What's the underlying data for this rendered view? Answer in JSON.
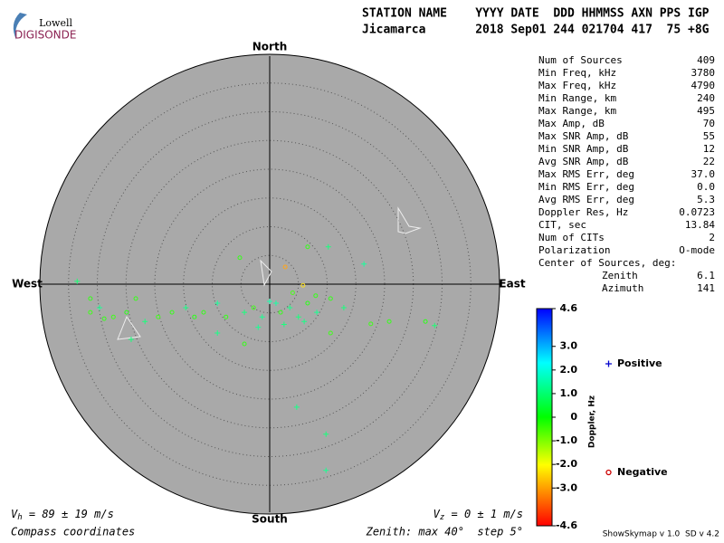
{
  "logo": {
    "top": "Lowell",
    "bottom": "DIGISONDE"
  },
  "header": {
    "line1": "STATION NAME    YYYY DATE  DDD HHMMSS AXN PPS IGP",
    "line2": "Jicamarca       2018 Sep01 244 021704 417  75 +8G"
  },
  "stats": {
    "rows": [
      [
        "Num of Sources",
        "409"
      ],
      [
        "Min Freq, kHz",
        "3780"
      ],
      [
        "Max Freq, kHz",
        "4790"
      ],
      [
        "Min Range, km",
        "240"
      ],
      [
        "Max Range, km",
        "495"
      ],
      [
        "Max Amp, dB",
        "70"
      ],
      [
        "Max SNR Amp, dB",
        "55"
      ],
      [
        "Min SNR Amp, dB",
        "12"
      ],
      [
        "Avg SNR Amp, dB",
        "22"
      ],
      [
        "Max RMS Err, deg",
        "37.0"
      ],
      [
        "Min RMS Err, deg",
        "0.0"
      ],
      [
        "Avg RMS Err, deg",
        "5.3"
      ],
      [
        "Doppler Res, Hz",
        "0.0723"
      ],
      [
        "CIT, sec",
        "13.84"
      ],
      [
        "Num of CITs",
        "2"
      ],
      [
        "Polarization",
        "O-mode"
      ]
    ],
    "center_title": "Center of Sources, deg:",
    "center_rows": [
      [
        "Zenith",
        "6.1"
      ],
      [
        "Azimuth",
        "141"
      ]
    ]
  },
  "directions": {
    "north": "North",
    "south": "South",
    "east": "East",
    "west": "West"
  },
  "footer": {
    "vh_symbol": "V",
    "vh_sub": "h",
    "vh_text": " = 89 ± 19 m/s",
    "vz_symbol": "V",
    "vz_sub": "z",
    "vz_text": " = 0 ± 1 m/s",
    "coords": "Compass coordinates",
    "zenith": "Zenith: max 40°  step 5°",
    "version": "ShowSkymap v 1.0  SD v 4.2"
  },
  "chart_data": {
    "type": "scatter",
    "xlim": [
      -40,
      40
    ],
    "ylim": [
      -40,
      40
    ],
    "rticks": [
      5,
      10,
      15,
      20,
      25,
      30,
      35
    ],
    "colorbar": {
      "label": "Doppler, Hz",
      "lim": [
        -4.6,
        4.6
      ],
      "ticks": [
        4.6,
        {
          "value": 3,
          "label": "3.0"
        },
        {
          "value": 2,
          "label": "2.0"
        },
        {
          "value": 1,
          "label": "1.0"
        },
        0,
        {
          "value": -1,
          "label": "-1.0"
        },
        {
          "value": -2,
          "label": "-2.0"
        },
        {
          "value": -3,
          "label": "-3.0"
        },
        -4.6
      ]
    },
    "series": [
      {
        "name": "Positive",
        "marker": "plus",
        "color": "#0000cc",
        "x": [
          -29.6,
          -21.7,
          -14.6,
          -9.1,
          -4.4,
          -1.3,
          1.1,
          3.5,
          5.0,
          8.2,
          12.9,
          28.7,
          4.7,
          9.8,
          9.8,
          10.2,
          16.4,
          -33.5,
          -24.1,
          -9.1,
          0,
          -2.0,
          6.0,
          2.5
        ],
        "values": [
          -4.1,
          -6.5,
          -4.1,
          -3.3,
          -4.9,
          -5.7,
          -3.3,
          -4.1,
          -5.7,
          -4.9,
          -4.1,
          -7.2,
          -21.4,
          -26.1,
          -32.4,
          6.5,
          3.5,
          0.5,
          -9.6,
          -8.5,
          -3.0,
          -7.5,
          -6.5,
          -7.0
        ],
        "doppler": [
          1.2,
          1.0,
          1.1,
          1.3,
          1.0,
          1.2,
          1.4,
          1.1,
          1.0,
          1.2,
          1.0,
          0.9,
          1.1,
          1.0,
          1.2,
          1.0,
          1.3,
          0.9,
          1.0,
          1.1,
          1.5,
          1.2,
          1.1,
          1.0
        ]
      },
      {
        "name": "Negative",
        "marker": "circle",
        "color": "#cc0000",
        "x": [
          -31.2,
          -27.2,
          -24.9,
          -23.3,
          -19.4,
          -17.0,
          -13.1,
          -11.5,
          -7.6,
          -2.8,
          1.9,
          6.6,
          10.6,
          17.6,
          20.8,
          27.1,
          10.6,
          -5.2,
          6.6,
          2.7,
          5.8,
          -4.4,
          -31.2,
          -28.8,
          4.0,
          8.0
        ],
        "values": [
          -2.5,
          -5.7,
          -4.9,
          -2.5,
          -5.7,
          -4.9,
          -5.7,
          -4.9,
          -5.7,
          -4.1,
          -4.9,
          -3.3,
          -2.5,
          -6.9,
          -6.5,
          -6.5,
          -8.5,
          4.6,
          6.5,
          3.0,
          -0.2,
          -10.4,
          -4.9,
          -6.0,
          -1.5,
          -2.0
        ],
        "doppler": [
          -0.3,
          -0.4,
          -0.2,
          -0.3,
          -0.4,
          -0.3,
          -0.2,
          -0.3,
          -0.3,
          -0.4,
          -0.3,
          -0.2,
          -0.3,
          -0.4,
          -0.3,
          -0.2,
          -0.4,
          -0.3,
          -0.3,
          -3.2,
          -2.6,
          -0.3,
          -0.4,
          -0.3,
          -0.5,
          -0.3
        ]
      }
    ]
  }
}
